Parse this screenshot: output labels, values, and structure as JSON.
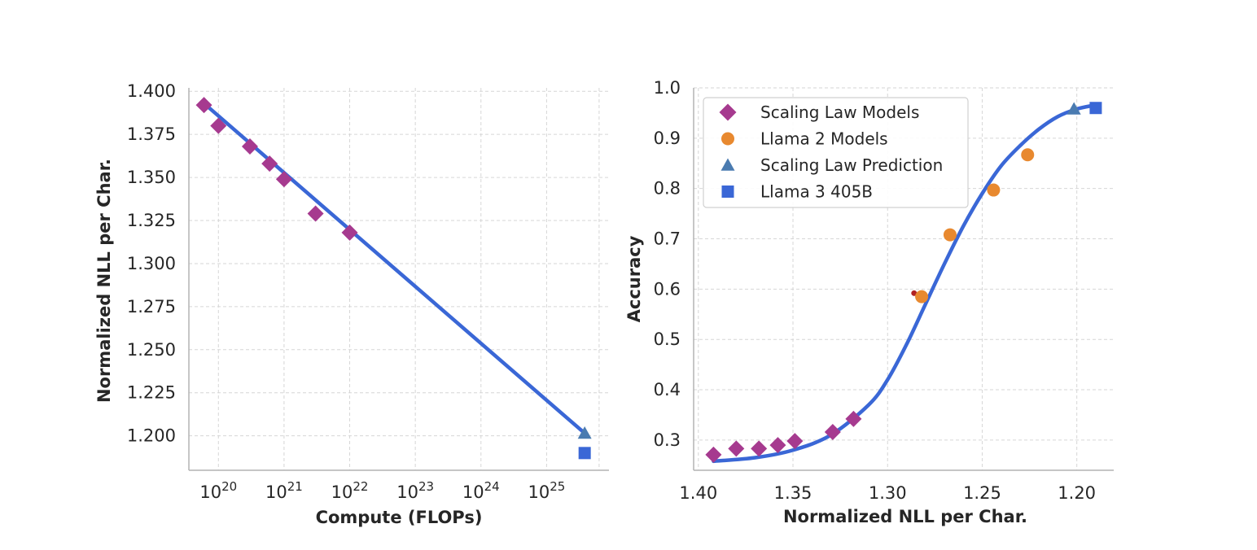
{
  "colors": {
    "scaling_law_models": "#a63a8f",
    "llama2_models": "#e8892f",
    "scaling_law_prediction": "#4a7bb0",
    "llama3_405b": "#3a67d6",
    "fit_line": "#3a67d6",
    "outlier_dot": "#b22222"
  },
  "chart_data": [
    {
      "type": "scatter",
      "xlabel": "Compute (FLOPs)",
      "ylabel": "Normalized NLL per Char.",
      "xscale": "log",
      "xlim_log10": [
        19.55,
        25.95
      ],
      "ylim": [
        1.18,
        1.402
      ],
      "x_tick_log10": [
        20,
        21,
        22,
        23,
        24,
        25
      ],
      "x_tick_labels": [
        {
          "base": "10",
          "exp": "20"
        },
        {
          "base": "10",
          "exp": "21"
        },
        {
          "base": "10",
          "exp": "22"
        },
        {
          "base": "10",
          "exp": "23"
        },
        {
          "base": "10",
          "exp": "24"
        },
        {
          "base": "10",
          "exp": "25"
        }
      ],
      "y_ticks": [
        1.2,
        1.225,
        1.25,
        1.275,
        1.3,
        1.325,
        1.35,
        1.375,
        1.4
      ],
      "y_tick_labels": [
        "1.200",
        "1.225",
        "1.250",
        "1.275",
        "1.300",
        "1.325",
        "1.350",
        "1.375",
        "1.400"
      ],
      "grid": true,
      "series": [
        {
          "name": "Scaling Law Models",
          "marker": "diamond",
          "points": [
            {
              "x_log10": 19.78,
              "y": 1.392
            },
            {
              "x_log10": 20.0,
              "y": 1.38
            },
            {
              "x_log10": 20.48,
              "y": 1.368
            },
            {
              "x_log10": 20.78,
              "y": 1.358
            },
            {
              "x_log10": 21.0,
              "y": 1.349
            },
            {
              "x_log10": 21.48,
              "y": 1.329
            },
            {
              "x_log10": 22.0,
              "y": 1.318
            }
          ]
        },
        {
          "name": "Scaling Law Prediction",
          "marker": "triangle",
          "points": [
            {
              "x_log10": 25.58,
              "y": 1.2015
            }
          ]
        },
        {
          "name": "Llama 3 405B",
          "marker": "square",
          "points": [
            {
              "x_log10": 25.58,
              "y": 1.19
            }
          ]
        }
      ],
      "fit_line": [
        {
          "x_log10": 19.78,
          "y": 1.393
        },
        {
          "x_log10": 25.58,
          "y": 1.2015
        }
      ]
    },
    {
      "type": "scatter",
      "xlabel": "Normalized NLL per Char.",
      "ylabel": "Accuracy",
      "x_inverted": true,
      "xlim": [
        1.4025,
        1.1805
      ],
      "ylim": [
        0.24,
        1.0
      ],
      "x_ticks": [
        1.4,
        1.35,
        1.3,
        1.25,
        1.2
      ],
      "x_tick_labels": [
        "1.40",
        "1.35",
        "1.30",
        "1.25",
        "1.20"
      ],
      "y_ticks": [
        0.3,
        0.4,
        0.5,
        0.6,
        0.7,
        0.8,
        0.9,
        1.0
      ],
      "y_tick_labels": [
        "0.3",
        "0.4",
        "0.5",
        "0.6",
        "0.7",
        "0.8",
        "0.9",
        "1.0"
      ],
      "grid": true,
      "legend_position": "top-left",
      "series": [
        {
          "name": "Scaling Law Models",
          "marker": "diamond",
          "points": [
            {
              "x": 1.392,
              "y": 0.271
            },
            {
              "x": 1.38,
              "y": 0.283
            },
            {
              "x": 1.368,
              "y": 0.283
            },
            {
              "x": 1.358,
              "y": 0.29
            },
            {
              "x": 1.349,
              "y": 0.298
            },
            {
              "x": 1.329,
              "y": 0.316
            },
            {
              "x": 1.318,
              "y": 0.342
            }
          ]
        },
        {
          "name": "Llama 2 Models",
          "marker": "circle",
          "points": [
            {
              "x": 1.282,
              "y": 0.585
            },
            {
              "x": 1.267,
              "y": 0.708
            },
            {
              "x": 1.244,
              "y": 0.797
            },
            {
              "x": 1.226,
              "y": 0.867
            }
          ]
        },
        {
          "name": "Scaling Law Prediction",
          "marker": "triangle",
          "points": [
            {
              "x": 1.2015,
              "y": 0.958
            }
          ]
        },
        {
          "name": "Llama 3 405B",
          "marker": "square",
          "points": [
            {
              "x": 1.19,
              "y": 0.96
            }
          ]
        }
      ],
      "extra_points": [
        {
          "x": 1.286,
          "y": 0.592
        }
      ],
      "fit_curve": [
        {
          "x": 1.392,
          "y": 0.258
        },
        {
          "x": 1.37,
          "y": 0.265
        },
        {
          "x": 1.35,
          "y": 0.28
        },
        {
          "x": 1.33,
          "y": 0.31
        },
        {
          "x": 1.31,
          "y": 0.37
        },
        {
          "x": 1.3,
          "y": 0.42
        },
        {
          "x": 1.29,
          "y": 0.49
        },
        {
          "x": 1.28,
          "y": 0.57
        },
        {
          "x": 1.27,
          "y": 0.65
        },
        {
          "x": 1.26,
          "y": 0.725
        },
        {
          "x": 1.25,
          "y": 0.79
        },
        {
          "x": 1.24,
          "y": 0.845
        },
        {
          "x": 1.23,
          "y": 0.885
        },
        {
          "x": 1.22,
          "y": 0.918
        },
        {
          "x": 1.21,
          "y": 0.943
        },
        {
          "x": 1.2,
          "y": 0.958
        },
        {
          "x": 1.19,
          "y": 0.966
        }
      ]
    }
  ]
}
